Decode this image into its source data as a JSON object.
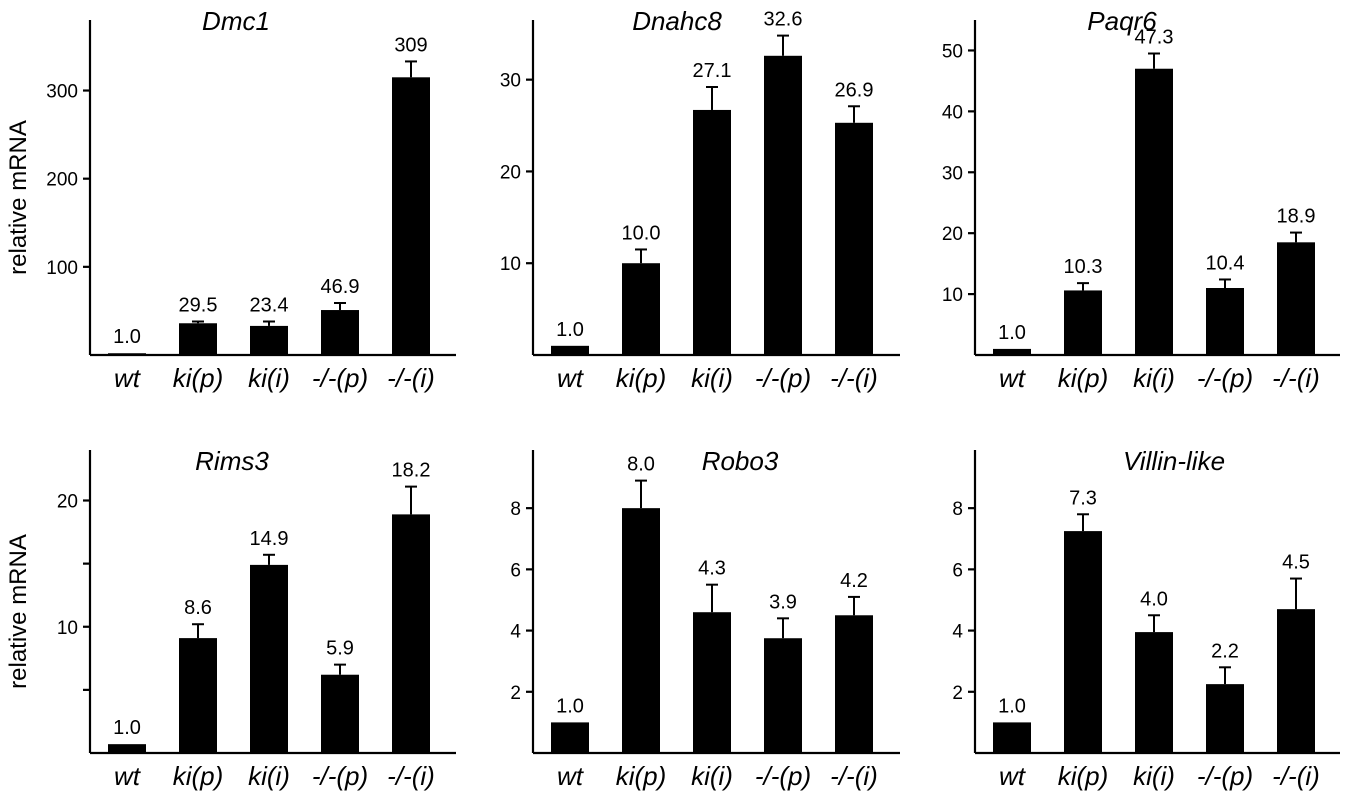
{
  "chart_data": [
    {
      "type": "bar",
      "title": "Dmc1",
      "ylabel": "relative mRNA",
      "categories": [
        "wt",
        "ki(p)",
        "ki(i)",
        "-/-(p)",
        "-/-(i)"
      ],
      "values": [
        1.0,
        29.5,
        23.4,
        46.9,
        309
      ],
      "bar_heights": [
        2,
        36,
        33,
        51,
        315
      ],
      "error_tops": [
        2,
        38,
        38,
        59,
        333
      ],
      "ylim": [
        0,
        380
      ],
      "yticks": [
        100,
        200,
        300
      ],
      "grid": false
    },
    {
      "type": "bar",
      "title": "Dnahc8",
      "ylabel": "",
      "categories": [
        "wt",
        "ki(p)",
        "ki(i)",
        "-/-(p)",
        "-/-(i)"
      ],
      "values": [
        1.0,
        10.0,
        27.1,
        32.6,
        26.9
      ],
      "bar_heights": [
        1,
        10,
        26.7,
        32.6,
        25.3
      ],
      "error_tops": [
        1,
        11.5,
        29.2,
        34.8,
        27.1
      ],
      "ylim": [
        0,
        36.5
      ],
      "yticks": [
        10,
        20,
        30
      ],
      "grid": false
    },
    {
      "type": "bar",
      "title": "Paqr6",
      "ylabel": "",
      "categories": [
        "wt",
        "ki(p)",
        "ki(i)",
        "-/-(p)",
        "-/-(i)"
      ],
      "values": [
        1.0,
        10.3,
        47.3,
        10.4,
        18.9
      ],
      "bar_heights": [
        1,
        10.6,
        47.0,
        11.0,
        18.5
      ],
      "error_tops": [
        1,
        11.8,
        49.5,
        12.4,
        20.1
      ],
      "ylim": [
        0,
        55
      ],
      "yticks": [
        10,
        20,
        30,
        40,
        50
      ],
      "grid": false
    },
    {
      "type": "bar",
      "title": "Rims3",
      "ylabel": "relative mRNA",
      "categories": [
        "wt",
        "ki(p)",
        "ki(i)",
        "-/-(p)",
        "-/-(i)"
      ],
      "values": [
        1.0,
        8.6,
        14.9,
        5.9,
        18.2
      ],
      "bar_heights": [
        0.7,
        9.1,
        14.9,
        6.2,
        18.9
      ],
      "error_tops": [
        0.7,
        10.2,
        15.7,
        7.0,
        21.1
      ],
      "ylim": [
        0,
        24
      ],
      "yticks": [
        5,
        10,
        15,
        20
      ],
      "yticklabels": [
        "",
        "10",
        "",
        "20"
      ],
      "grid": false
    },
    {
      "type": "bar",
      "title": "Robo3",
      "ylabel": "",
      "categories": [
        "wt",
        "ki(p)",
        "ki(i)",
        "-/-(p)",
        "-/-(i)"
      ],
      "values": [
        1.0,
        8.0,
        4.3,
        3.9,
        4.2
      ],
      "bar_heights": [
        1.0,
        8.0,
        4.6,
        3.75,
        4.5
      ],
      "error_tops": [
        1.0,
        8.9,
        5.5,
        4.4,
        5.1
      ],
      "ylim": [
        0,
        9.9
      ],
      "yticks": [
        2,
        4,
        6,
        8
      ],
      "grid": false
    },
    {
      "type": "bar",
      "title": "Villin-like",
      "ylabel": "",
      "categories": [
        "wt",
        "ki(p)",
        "ki(i)",
        "-/-(p)",
        "-/-(i)"
      ],
      "values": [
        1.0,
        7.3,
        4.0,
        2.2,
        4.5
      ],
      "bar_heights": [
        1.0,
        7.25,
        3.95,
        2.25,
        4.7
      ],
      "error_tops": [
        1.0,
        7.8,
        4.5,
        2.8,
        5.7
      ],
      "ylim": [
        0,
        9.9
      ],
      "yticks": [
        2,
        4,
        6,
        8
      ],
      "grid": false
    }
  ]
}
